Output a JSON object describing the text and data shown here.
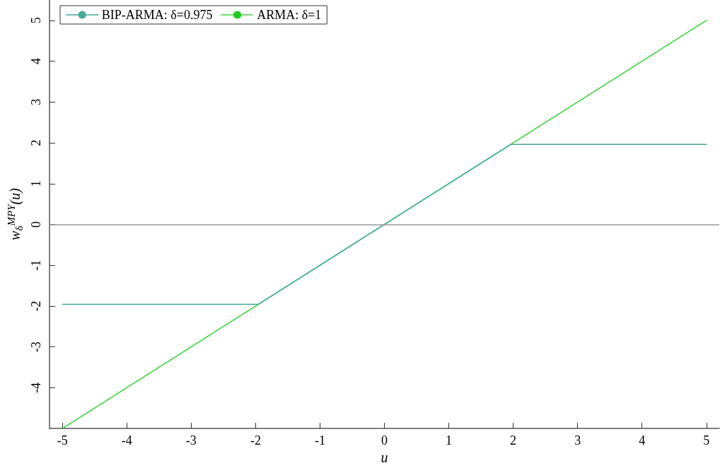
{
  "chart_data": {
    "type": "line",
    "xlabel": "u",
    "ylabel": "w$_{δ}$$^{MPY}$(u)",
    "legend": "top left",
    "grid": false,
    "marker": "none",
    "series": [
      {
        "name": "BIP-ARMA: δ=0.975",
        "color": "#44aa99",
        "line_style": "solid",
        "x": [
          -5,
          -1.96,
          1.96,
          5
        ],
        "values": [
          -1.96,
          -1.96,
          1.96,
          1.96
        ]
      },
      {
        "name": "ARMA: δ=1",
        "color": "#22cc22",
        "line_style": "dotted",
        "x": [
          -5,
          5
        ],
        "values": [
          -5,
          5
        ]
      }
    ],
    "xlim": [
      -5.2,
      5.2
    ],
    "xticks": [
      -5,
      -4,
      -3,
      -2,
      -1,
      0,
      1,
      2,
      3,
      4,
      5
    ],
    "ylim": [
      -5,
      5.5
    ],
    "yticks": [
      -4,
      -3,
      -2,
      -1,
      0,
      1,
      2,
      3,
      4,
      5
    ],
    "ref_lines": [
      {
        "axis": "y",
        "value": 0,
        "color": "#999999"
      }
    ]
  }
}
